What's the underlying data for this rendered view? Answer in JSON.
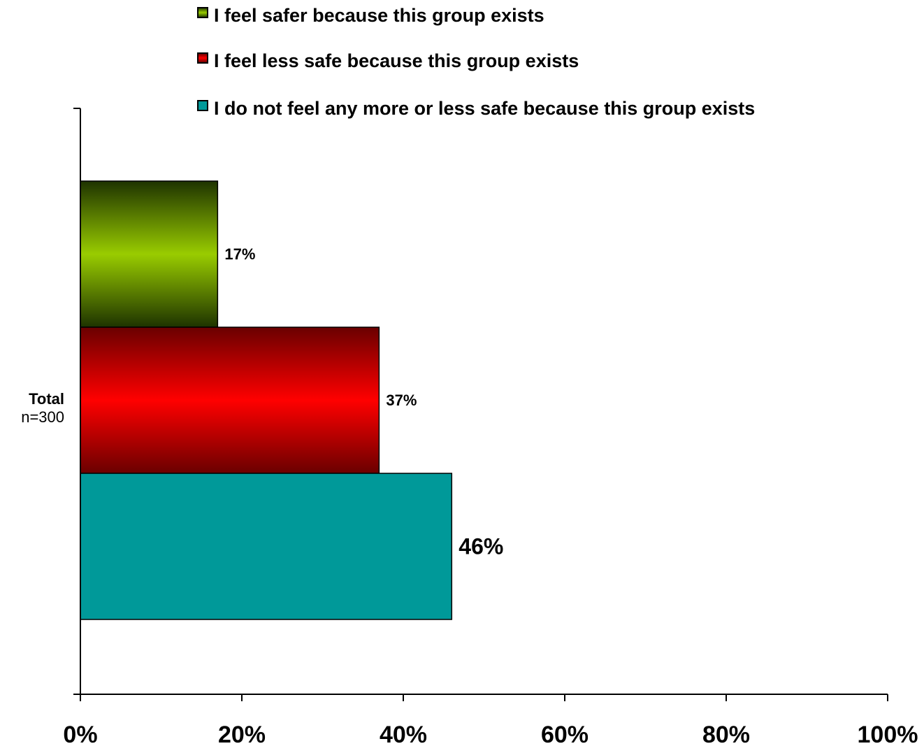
{
  "chart_data": {
    "type": "bar",
    "orientation": "horizontal",
    "categories": [
      "Total"
    ],
    "category_sublabels": [
      "n=300"
    ],
    "series": [
      {
        "name": "I feel safer because this group exists",
        "values": [
          17
        ],
        "color": "#99cc00",
        "data_label": "17%"
      },
      {
        "name": "I feel less safe because this group exists",
        "values": [
          37
        ],
        "color": "#ff0000",
        "data_label": "37%"
      },
      {
        "name": "I do not feel any more or less safe because this group exists",
        "values": [
          46
        ],
        "color": "#009999",
        "data_label": "46%"
      }
    ],
    "xlim": [
      0,
      100
    ],
    "xticks": [
      "0%",
      "20%",
      "40%",
      "60%",
      "80%",
      "100%"
    ],
    "title": "",
    "xlabel": "",
    "ylabel": "",
    "grid": false,
    "legend_position": "top"
  }
}
